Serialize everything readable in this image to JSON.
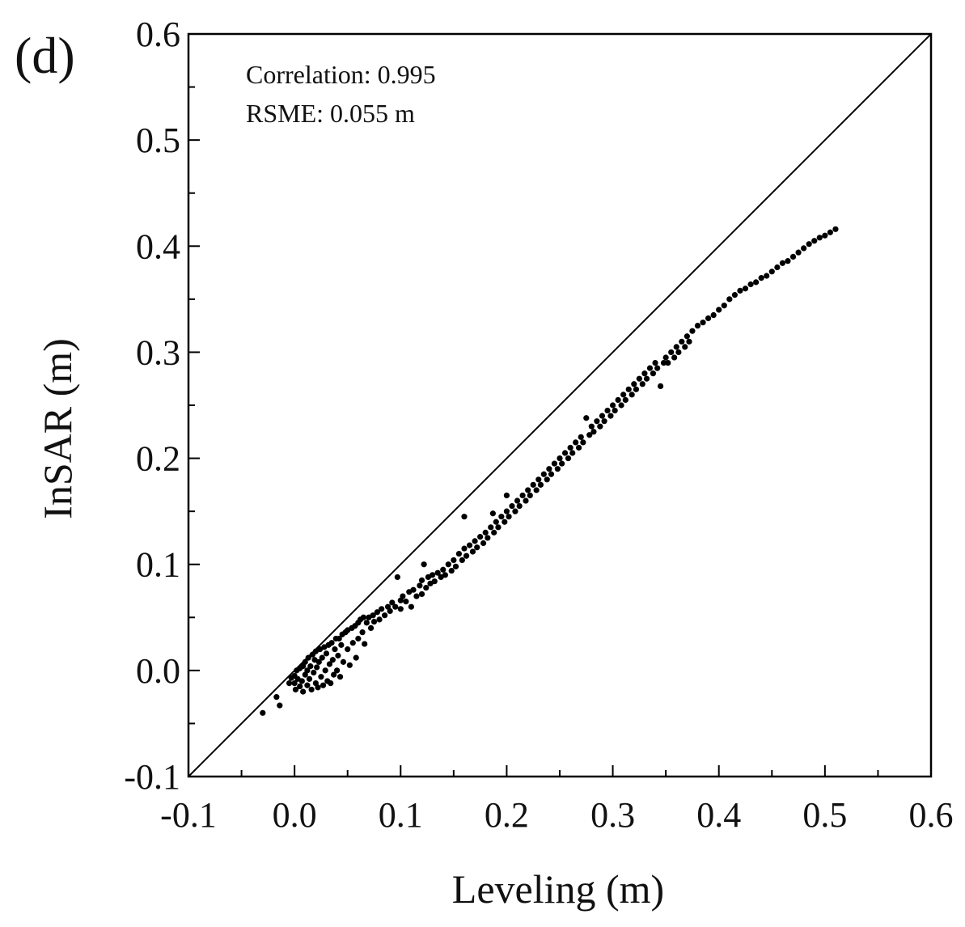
{
  "chart_data": {
    "type": "scatter",
    "panel_label": "(d)",
    "title": "",
    "xlabel": "Leveling (m)",
    "ylabel": "InSAR (m)",
    "xlim": [
      -0.1,
      0.6
    ],
    "ylim": [
      -0.1,
      0.6
    ],
    "xticks": [
      -0.1,
      0.0,
      0.1,
      0.2,
      0.3,
      0.4,
      0.5,
      0.6
    ],
    "yticks": [
      -0.1,
      0.0,
      0.1,
      0.2,
      0.3,
      0.4,
      0.5,
      0.6
    ],
    "xtick_labels": [
      "-0.1",
      "0.0",
      "0.1",
      "0.2",
      "0.3",
      "0.4",
      "0.5",
      "0.6"
    ],
    "ytick_labels": [
      "-0.1",
      "0.0",
      "0.1",
      "0.2",
      "0.3",
      "0.4",
      "0.5",
      "0.6"
    ],
    "reference_line": {
      "type": "1:1",
      "from": [
        -0.1,
        -0.1
      ],
      "to": [
        0.6,
        0.6
      ]
    },
    "annotations": {
      "correlation": "Correlation: 0.995",
      "rsme": "RSME: 0.055 m"
    },
    "marker_color": "#000000",
    "line_color": "#000000",
    "series": [
      {
        "name": "InSAR vs Leveling",
        "points": [
          [
            -0.03,
            -0.04
          ],
          [
            -0.017,
            -0.025
          ],
          [
            -0.014,
            -0.033
          ],
          [
            -0.005,
            -0.012
          ],
          [
            -0.003,
            -0.007
          ],
          [
            0.0,
            -0.005
          ],
          [
            0.0,
            -0.012
          ],
          [
            0.001,
            -0.018
          ],
          [
            0.002,
            0.0
          ],
          [
            0.003,
            -0.008
          ],
          [
            0.005,
            -0.015
          ],
          [
            0.005,
            0.002
          ],
          [
            0.007,
            -0.01
          ],
          [
            0.008,
            0.004
          ],
          [
            0.008,
            -0.02
          ],
          [
            0.01,
            -0.004
          ],
          [
            0.01,
            0.008
          ],
          [
            0.012,
            -0.014
          ],
          [
            0.012,
            0.0
          ],
          [
            0.013,
            0.012
          ],
          [
            0.014,
            -0.008
          ],
          [
            0.015,
            0.004
          ],
          [
            0.016,
            -0.018
          ],
          [
            0.017,
            0.015
          ],
          [
            0.018,
            -0.002
          ],
          [
            0.019,
            0.01
          ],
          [
            0.02,
            -0.012
          ],
          [
            0.02,
            0.018
          ],
          [
            0.021,
            0.003
          ],
          [
            0.022,
            -0.016
          ],
          [
            0.023,
            0.008
          ],
          [
            0.024,
            0.02
          ],
          [
            0.025,
            -0.006
          ],
          [
            0.026,
            0.012
          ],
          [
            0.027,
            -0.014
          ],
          [
            0.028,
            0.022
          ],
          [
            0.029,
            0.0
          ],
          [
            0.03,
            0.016
          ],
          [
            0.031,
            -0.01
          ],
          [
            0.032,
            0.024
          ],
          [
            0.033,
            0.006
          ],
          [
            0.034,
            -0.012
          ],
          [
            0.035,
            0.026
          ],
          [
            0.036,
            0.01
          ],
          [
            0.037,
            -0.004
          ],
          [
            0.038,
            0.02
          ],
          [
            0.039,
            0.03
          ],
          [
            0.04,
            0.0
          ],
          [
            0.041,
            0.014
          ],
          [
            0.042,
            0.03
          ],
          [
            0.043,
            -0.006
          ],
          [
            0.044,
            0.024
          ],
          [
            0.045,
            0.034
          ],
          [
            0.046,
            0.008
          ],
          [
            0.048,
            0.036
          ],
          [
            0.05,
            0.02
          ],
          [
            0.05,
            0.038
          ],
          [
            0.052,
            0.005
          ],
          [
            0.054,
            0.04
          ],
          [
            0.055,
            0.026
          ],
          [
            0.057,
            0.042
          ],
          [
            0.058,
            0.012
          ],
          [
            0.06,
            0.045
          ],
          [
            0.06,
            0.03
          ],
          [
            0.062,
            0.048
          ],
          [
            0.064,
            0.036
          ],
          [
            0.065,
            0.05
          ],
          [
            0.066,
            0.025
          ],
          [
            0.068,
            0.045
          ],
          [
            0.07,
            0.05
          ],
          [
            0.072,
            0.04
          ],
          [
            0.074,
            0.052
          ],
          [
            0.075,
            0.046
          ],
          [
            0.078,
            0.055
          ],
          [
            0.08,
            0.048
          ],
          [
            0.082,
            0.058
          ],
          [
            0.085,
            0.052
          ],
          [
            0.088,
            0.06
          ],
          [
            0.09,
            0.056
          ],
          [
            0.092,
            0.064
          ],
          [
            0.095,
            0.06
          ],
          [
            0.097,
            0.088
          ],
          [
            0.1,
            0.066
          ],
          [
            0.1,
            0.058
          ],
          [
            0.102,
            0.07
          ],
          [
            0.105,
            0.065
          ],
          [
            0.108,
            0.074
          ],
          [
            0.11,
            0.06
          ],
          [
            0.112,
            0.076
          ],
          [
            0.115,
            0.07
          ],
          [
            0.118,
            0.08
          ],
          [
            0.12,
            0.085
          ],
          [
            0.12,
            0.072
          ],
          [
            0.122,
            0.1
          ],
          [
            0.124,
            0.078
          ],
          [
            0.126,
            0.088
          ],
          [
            0.128,
            0.082
          ],
          [
            0.13,
            0.09
          ],
          [
            0.132,
            0.084
          ],
          [
            0.135,
            0.092
          ],
          [
            0.138,
            0.088
          ],
          [
            0.14,
            0.095
          ],
          [
            0.142,
            0.09
          ],
          [
            0.145,
            0.1
          ],
          [
            0.148,
            0.094
          ],
          [
            0.15,
            0.104
          ],
          [
            0.152,
            0.098
          ],
          [
            0.155,
            0.11
          ],
          [
            0.158,
            0.104
          ],
          [
            0.16,
            0.115
          ],
          [
            0.16,
            0.145
          ],
          [
            0.162,
            0.108
          ],
          [
            0.165,
            0.118
          ],
          [
            0.168,
            0.112
          ],
          [
            0.17,
            0.122
          ],
          [
            0.172,
            0.116
          ],
          [
            0.175,
            0.126
          ],
          [
            0.178,
            0.12
          ],
          [
            0.18,
            0.13
          ],
          [
            0.182,
            0.125
          ],
          [
            0.185,
            0.135
          ],
          [
            0.187,
            0.148
          ],
          [
            0.188,
            0.13
          ],
          [
            0.19,
            0.14
          ],
          [
            0.192,
            0.135
          ],
          [
            0.195,
            0.145
          ],
          [
            0.198,
            0.14
          ],
          [
            0.2,
            0.165
          ],
          [
            0.2,
            0.15
          ],
          [
            0.202,
            0.145
          ],
          [
            0.205,
            0.155
          ],
          [
            0.208,
            0.15
          ],
          [
            0.21,
            0.16
          ],
          [
            0.212,
            0.155
          ],
          [
            0.215,
            0.165
          ],
          [
            0.218,
            0.16
          ],
          [
            0.22,
            0.17
          ],
          [
            0.222,
            0.165
          ],
          [
            0.225,
            0.175
          ],
          [
            0.228,
            0.17
          ],
          [
            0.23,
            0.18
          ],
          [
            0.232,
            0.175
          ],
          [
            0.235,
            0.185
          ],
          [
            0.238,
            0.18
          ],
          [
            0.24,
            0.19
          ],
          [
            0.242,
            0.185
          ],
          [
            0.245,
            0.195
          ],
          [
            0.248,
            0.19
          ],
          [
            0.25,
            0.2
          ],
          [
            0.252,
            0.195
          ],
          [
            0.255,
            0.205
          ],
          [
            0.258,
            0.2
          ],
          [
            0.26,
            0.21
          ],
          [
            0.262,
            0.205
          ],
          [
            0.265,
            0.215
          ],
          [
            0.268,
            0.21
          ],
          [
            0.27,
            0.22
          ],
          [
            0.272,
            0.215
          ],
          [
            0.275,
            0.238
          ],
          [
            0.278,
            0.222
          ],
          [
            0.28,
            0.23
          ],
          [
            0.282,
            0.225
          ],
          [
            0.285,
            0.235
          ],
          [
            0.288,
            0.23
          ],
          [
            0.29,
            0.24
          ],
          [
            0.292,
            0.235
          ],
          [
            0.295,
            0.245
          ],
          [
            0.298,
            0.24
          ],
          [
            0.3,
            0.25
          ],
          [
            0.302,
            0.245
          ],
          [
            0.305,
            0.255
          ],
          [
            0.308,
            0.25
          ],
          [
            0.31,
            0.26
          ],
          [
            0.312,
            0.255
          ],
          [
            0.315,
            0.265
          ],
          [
            0.318,
            0.26
          ],
          [
            0.32,
            0.27
          ],
          [
            0.322,
            0.265
          ],
          [
            0.325,
            0.275
          ],
          [
            0.328,
            0.27
          ],
          [
            0.33,
            0.28
          ],
          [
            0.332,
            0.275
          ],
          [
            0.335,
            0.285
          ],
          [
            0.338,
            0.28
          ],
          [
            0.34,
            0.29
          ],
          [
            0.342,
            0.285
          ],
          [
            0.345,
            0.268
          ],
          [
            0.348,
            0.29
          ],
          [
            0.35,
            0.295
          ],
          [
            0.352,
            0.29
          ],
          [
            0.355,
            0.3
          ],
          [
            0.358,
            0.295
          ],
          [
            0.36,
            0.305
          ],
          [
            0.362,
            0.3
          ],
          [
            0.365,
            0.31
          ],
          [
            0.368,
            0.305
          ],
          [
            0.37,
            0.315
          ],
          [
            0.372,
            0.31
          ],
          [
            0.375,
            0.32
          ],
          [
            0.38,
            0.325
          ],
          [
            0.385,
            0.328
          ],
          [
            0.39,
            0.332
          ],
          [
            0.395,
            0.335
          ],
          [
            0.4,
            0.34
          ],
          [
            0.405,
            0.344
          ],
          [
            0.41,
            0.35
          ],
          [
            0.415,
            0.354
          ],
          [
            0.42,
            0.358
          ],
          [
            0.425,
            0.36
          ],
          [
            0.43,
            0.364
          ],
          [
            0.435,
            0.366
          ],
          [
            0.44,
            0.37
          ],
          [
            0.445,
            0.372
          ],
          [
            0.45,
            0.376
          ],
          [
            0.455,
            0.38
          ],
          [
            0.46,
            0.384
          ],
          [
            0.465,
            0.386
          ],
          [
            0.47,
            0.39
          ],
          [
            0.475,
            0.394
          ],
          [
            0.48,
            0.398
          ],
          [
            0.485,
            0.402
          ],
          [
            0.49,
            0.405
          ],
          [
            0.495,
            0.408
          ],
          [
            0.5,
            0.41
          ],
          [
            0.505,
            0.413
          ],
          [
            0.51,
            0.416
          ]
        ]
      }
    ]
  }
}
